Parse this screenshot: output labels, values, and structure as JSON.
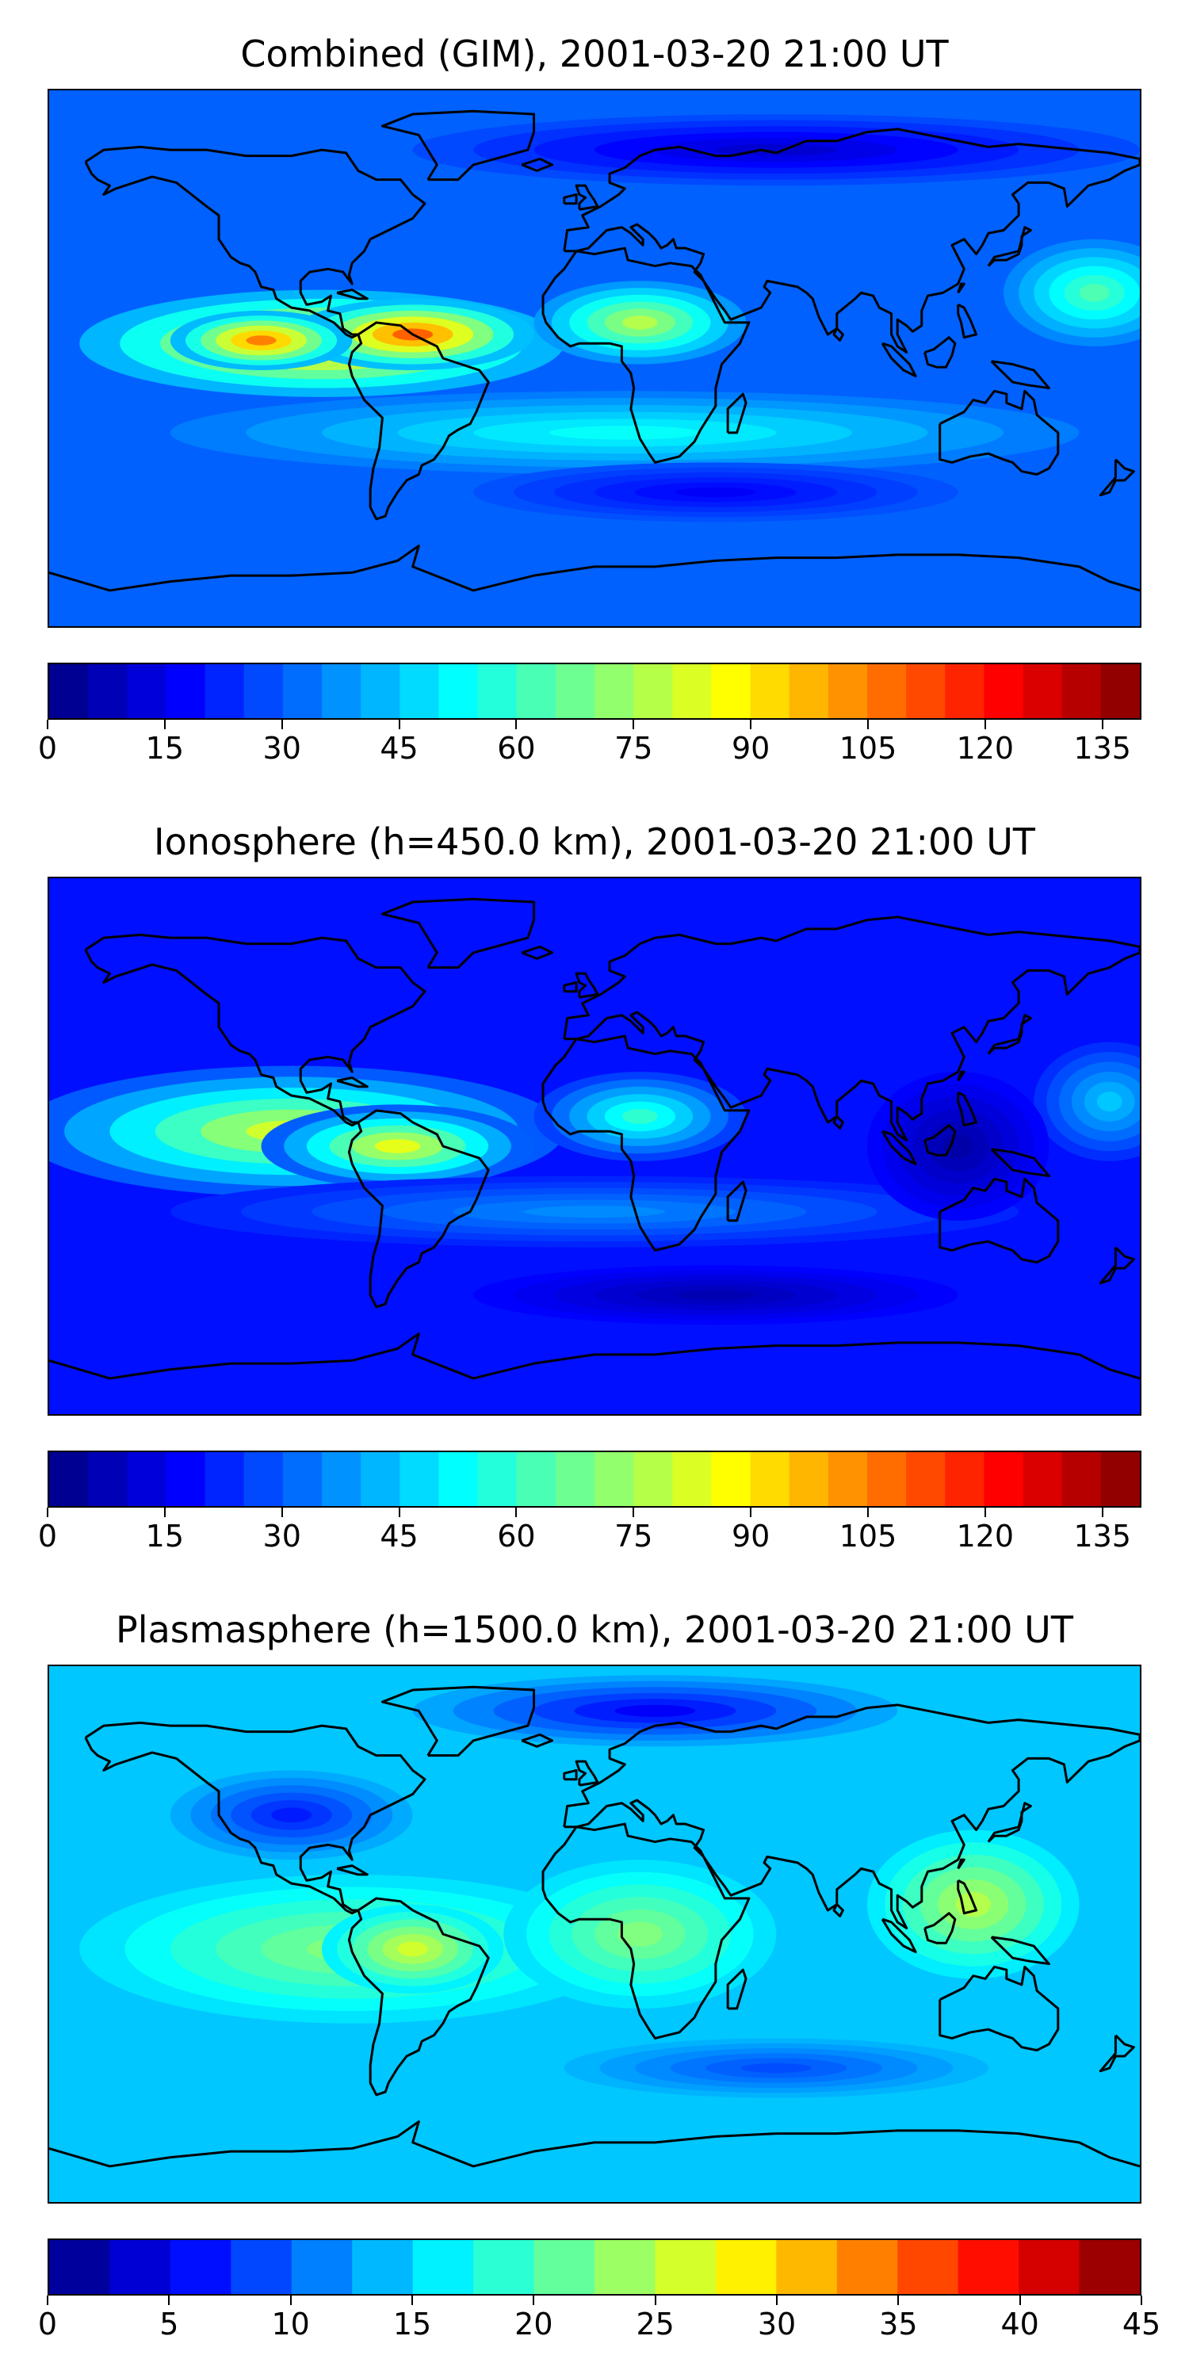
{
  "panels": [
    {
      "title": "Combined (GIM), 2001-03-20 21:00 UT",
      "colorbar": {
        "min": 0,
        "max": 140,
        "step": 5,
        "ticks": [
          "0",
          "15",
          "30",
          "45",
          "60",
          "75",
          "90",
          "105",
          "120",
          "135"
        ],
        "tick_values": [
          0,
          15,
          30,
          45,
          60,
          75,
          90,
          105,
          120,
          135
        ]
      },
      "map_data": {
        "background_level": 0.22,
        "blobs": [
          {
            "lon": -90,
            "lat": 5,
            "rx": 80,
            "ry": 18,
            "level": 0.72
          },
          {
            "lon": -60,
            "lat": 8,
            "rx": 40,
            "ry": 12,
            "level": 0.78
          },
          {
            "lon": -110,
            "lat": 6,
            "rx": 30,
            "ry": 10,
            "level": 0.75
          },
          {
            "lon": 15,
            "lat": 12,
            "rx": 35,
            "ry": 14,
            "level": 0.55
          },
          {
            "lon": 165,
            "lat": 22,
            "rx": 30,
            "ry": 18,
            "level": 0.45
          },
          {
            "lon": 10,
            "lat": -25,
            "rx": 150,
            "ry": 14,
            "level": 0.38
          },
          {
            "lon": 40,
            "lat": -45,
            "rx": 80,
            "ry": 10,
            "level": 0.12
          },
          {
            "lon": 60,
            "lat": 70,
            "rx": 120,
            "ry": 12,
            "level": 0.08
          }
        ]
      }
    },
    {
      "title": "Ionosphere  (h=450.0 km), 2001-03-20 21:00 UT",
      "colorbar": {
        "min": 0,
        "max": 140,
        "step": 5,
        "ticks": [
          "0",
          "15",
          "30",
          "45",
          "60",
          "75",
          "90",
          "105",
          "120",
          "135"
        ],
        "tick_values": [
          0,
          15,
          30,
          45,
          60,
          75,
          90,
          105,
          120,
          135
        ]
      },
      "map_data": {
        "background_level": 0.14,
        "blobs": [
          {
            "lon": -100,
            "lat": 5,
            "rx": 90,
            "ry": 22,
            "level": 0.58
          },
          {
            "lon": -65,
            "lat": 0,
            "rx": 45,
            "ry": 14,
            "level": 0.6
          },
          {
            "lon": 15,
            "lat": 10,
            "rx": 35,
            "ry": 15,
            "level": 0.42
          },
          {
            "lon": 170,
            "lat": 15,
            "rx": 25,
            "ry": 20,
            "level": 0.32
          },
          {
            "lon": 0,
            "lat": -22,
            "rx": 140,
            "ry": 12,
            "level": 0.26
          },
          {
            "lon": 120,
            "lat": 0,
            "rx": 30,
            "ry": 25,
            "level": 0.04
          },
          {
            "lon": 40,
            "lat": -50,
            "rx": 80,
            "ry": 10,
            "level": 0.05
          }
        ]
      }
    },
    {
      "title": "Plasmasphere (h=1500.0 km), 2001-03-20 21:00 UT",
      "colorbar": {
        "min": 0,
        "max": 45,
        "step": 2.5,
        "ticks": [
          "0",
          "5",
          "10",
          "15",
          "20",
          "25",
          "30",
          "35",
          "40",
          "45"
        ],
        "tick_values": [
          0,
          5,
          10,
          15,
          20,
          25,
          30,
          35,
          40,
          45
        ]
      },
      "map_data": {
        "background_level": 0.32,
        "blobs": [
          {
            "lon": -80,
            "lat": -5,
            "rx": 90,
            "ry": 25,
            "level": 0.5
          },
          {
            "lon": -60,
            "lat": -5,
            "rx": 30,
            "ry": 15,
            "level": 0.58
          },
          {
            "lon": 15,
            "lat": 0,
            "rx": 45,
            "ry": 25,
            "level": 0.5
          },
          {
            "lon": 125,
            "lat": 10,
            "rx": 35,
            "ry": 25,
            "level": 0.55
          },
          {
            "lon": -100,
            "lat": 40,
            "rx": 40,
            "ry": 15,
            "level": 0.15
          },
          {
            "lon": 20,
            "lat": 75,
            "rx": 80,
            "ry": 12,
            "level": 0.12
          },
          {
            "lon": 60,
            "lat": -45,
            "rx": 70,
            "ry": 10,
            "level": 0.2
          }
        ]
      }
    }
  ],
  "colors": {
    "colormap": "jet",
    "coastline": "#000000"
  }
}
